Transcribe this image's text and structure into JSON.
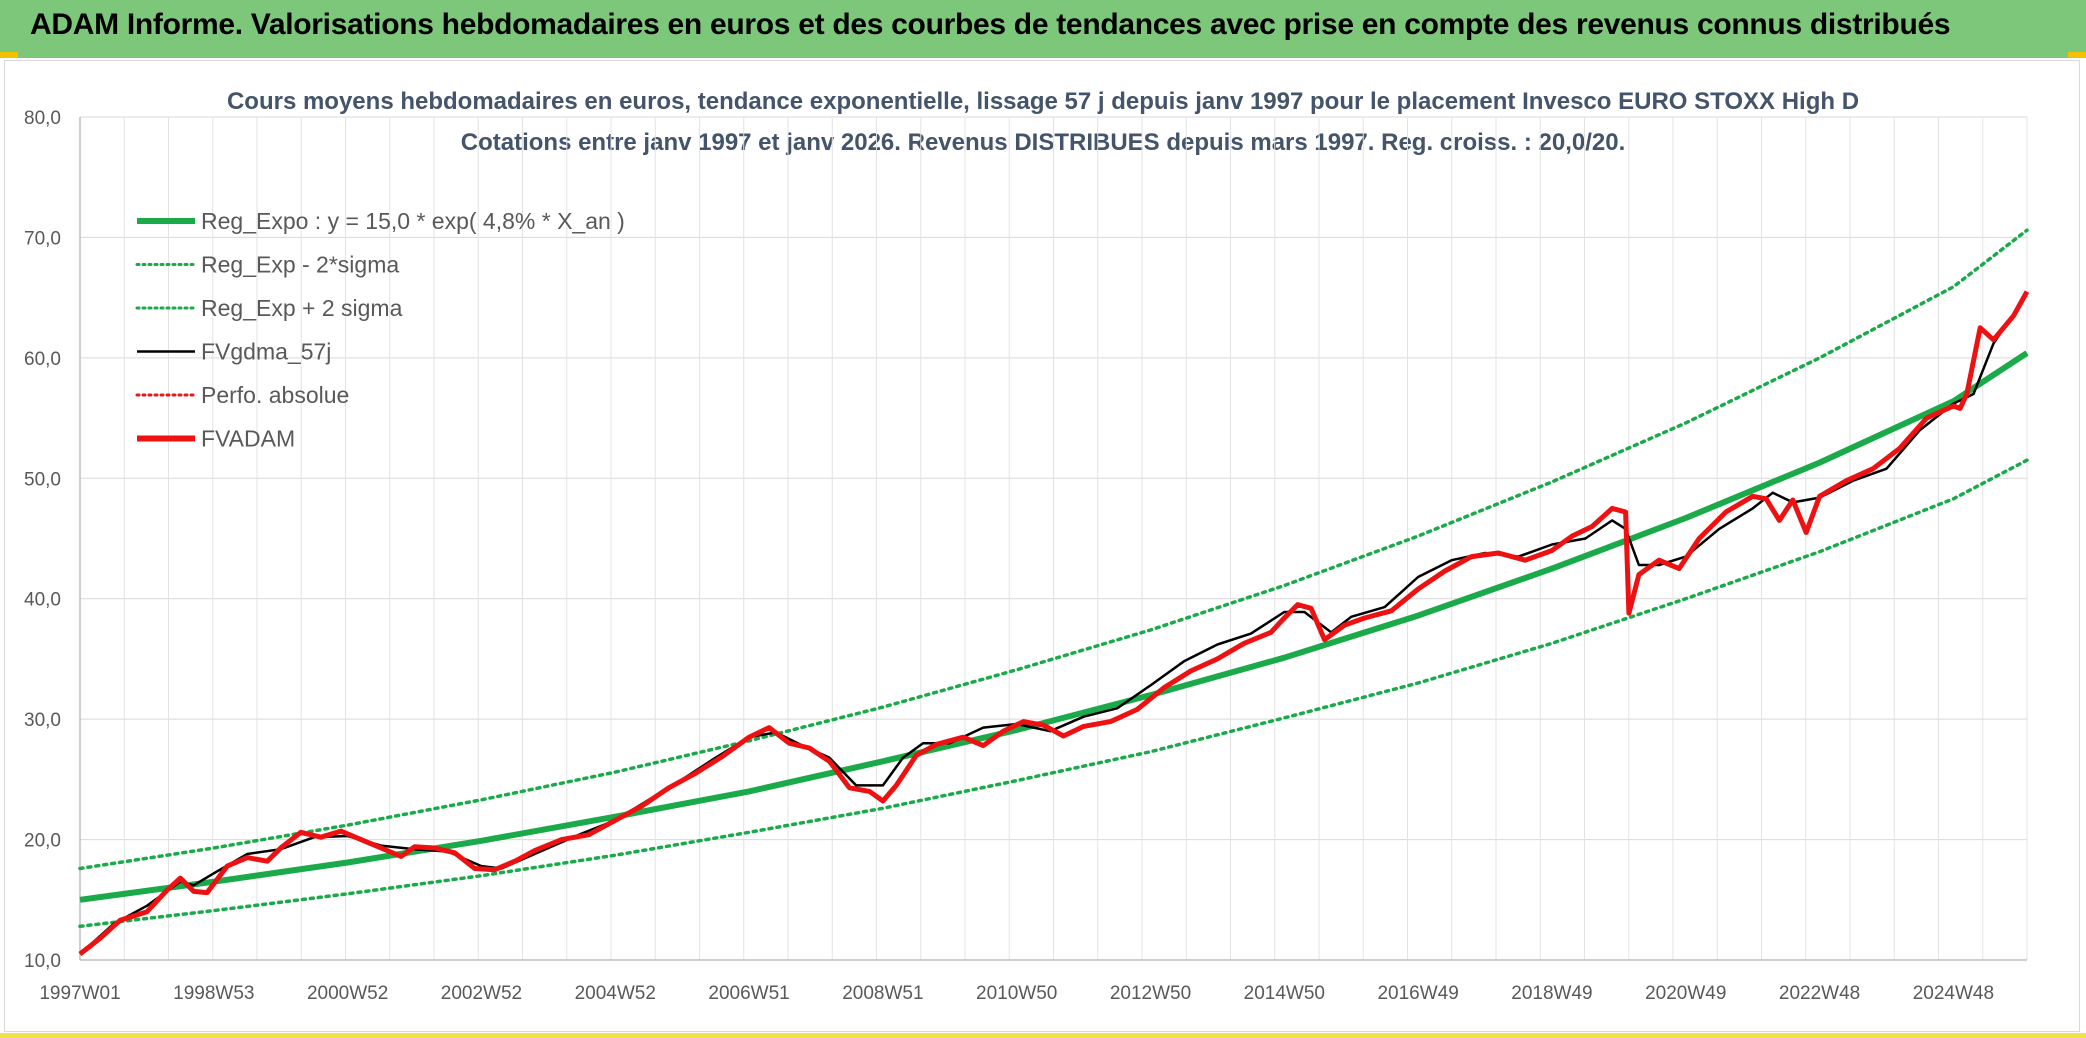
{
  "banner": {
    "title": "ADAM Informe. Valorisations hebdomadaires en euros et des courbes de tendances avec prise en compte des revenus connus distribués",
    "background": "#7dc77b"
  },
  "chart_data": {
    "type": "line",
    "title": "Cours moyens hebdomadaires en euros, tendance exponentielle, lissage 57 j depuis janv 1997 pour le placement Invesco EURO STOXX High D",
    "subtitle": "Cotations entre janv 1997 et janv 2026. Revenus DISTRIBUES depuis mars 1997. Reg. croiss. : 20,0/20.",
    "xlabel": "",
    "ylabel": "",
    "ylim": [
      10,
      80
    ],
    "yticks": [
      "10,0",
      "20,0",
      "30,0",
      "40,0",
      "50,0",
      "60,0",
      "70,0",
      "80,0"
    ],
    "xlim": [
      1997.0,
      2026.1
    ],
    "xticks": [
      {
        "label": "1997W01",
        "x": 1997.0
      },
      {
        "label": "1998W53",
        "x": 1999.0
      },
      {
        "label": "2000W52",
        "x": 2001.0
      },
      {
        "label": "2002W52",
        "x": 2003.0
      },
      {
        "label": "2004W52",
        "x": 2005.0
      },
      {
        "label": "2006W51",
        "x": 2007.0
      },
      {
        "label": "2008W51",
        "x": 2009.0
      },
      {
        "label": "2010W50",
        "x": 2011.0
      },
      {
        "label": "2012W50",
        "x": 2013.0
      },
      {
        "label": "2014W50",
        "x": 2015.0
      },
      {
        "label": "2016W49",
        "x": 2017.0
      },
      {
        "label": "2018W49",
        "x": 2019.0
      },
      {
        "label": "2020W49",
        "x": 2021.0
      },
      {
        "label": "2022W48",
        "x": 2023.0
      },
      {
        "label": "2024W48",
        "x": 2025.0
      }
    ],
    "grid": true,
    "legend_placement": "top-left",
    "series": [
      {
        "name": "Reg_Expo : y = 15,0 * exp( 4,8% *  X_an )",
        "color": "#1aaa4a",
        "style": "solid-thick",
        "x": [
          1997.0,
          1999.0,
          2001.0,
          2003.0,
          2005.0,
          2007.0,
          2009.0,
          2011.0,
          2013.0,
          2015.0,
          2017.0,
          2019.0,
          2021.0,
          2023.0,
          2025.0,
          2026.1
        ],
        "y": [
          15.0,
          16.5,
          18.1,
          19.9,
          21.9,
          24.0,
          26.5,
          29.1,
          32.0,
          35.1,
          38.6,
          42.5,
          46.7,
          51.3,
          56.4,
          60.4
        ]
      },
      {
        "name": "Reg_Exp - 2*sigma",
        "color": "#1aaa4a",
        "style": "dotted",
        "x": [
          1997.0,
          1999.0,
          2001.0,
          2003.0,
          2005.0,
          2007.0,
          2009.0,
          2011.0,
          2013.0,
          2015.0,
          2017.0,
          2019.0,
          2021.0,
          2023.0,
          2025.0,
          2026.1
        ],
        "y": [
          12.8,
          14.1,
          15.5,
          17.0,
          18.7,
          20.6,
          22.6,
          24.9,
          27.3,
          30.1,
          33.0,
          36.3,
          40.0,
          43.9,
          48.3,
          51.5
        ]
      },
      {
        "name": "Reg_Exp + 2 sigma",
        "color": "#1aaa4a",
        "style": "dotted",
        "x": [
          1997.0,
          1999.0,
          2001.0,
          2003.0,
          2005.0,
          2007.0,
          2009.0,
          2011.0,
          2013.0,
          2015.0,
          2017.0,
          2019.0,
          2021.0,
          2023.0,
          2025.0,
          2026.1
        ],
        "y": [
          17.6,
          19.3,
          21.2,
          23.3,
          25.6,
          28.2,
          31.0,
          34.1,
          37.4,
          41.1,
          45.2,
          49.7,
          54.6,
          60.0,
          65.9,
          70.6
        ]
      },
      {
        "name": "FVgdma_57j",
        "color": "#000000",
        "style": "solid",
        "x": [
          1997.0,
          1997.5,
          1998.0,
          1998.5,
          1998.7,
          1999.0,
          1999.5,
          2000.0,
          2000.5,
          2001.0,
          2001.5,
          2002.0,
          2002.5,
          2003.0,
          2003.3,
          2004.0,
          2004.5,
          2005.0,
          2005.5,
          2006.0,
          2006.5,
          2007.0,
          2007.4,
          2007.8,
          2008.2,
          2008.6,
          2009.0,
          2009.3,
          2009.6,
          2010.0,
          2010.5,
          2011.0,
          2011.5,
          2012.0,
          2012.5,
          2013.0,
          2013.5,
          2014.0,
          2014.5,
          2015.0,
          2015.3,
          2015.7,
          2016.0,
          2016.5,
          2017.0,
          2017.5,
          2018.0,
          2018.5,
          2019.0,
          2019.5,
          2019.9,
          2020.1,
          2020.3,
          2020.6,
          2021.0,
          2021.5,
          2022.0,
          2022.3,
          2022.6,
          2023.0,
          2023.5,
          2024.0,
          2024.5,
          2025.0,
          2025.3,
          2025.6,
          2026.0
        ],
        "y": [
          10.5,
          13.0,
          14.5,
          16.5,
          16.2,
          17.2,
          18.8,
          19.2,
          20.2,
          20.3,
          19.5,
          19.2,
          19.0,
          17.8,
          17.6,
          19.3,
          20.5,
          21.6,
          23.3,
          25.0,
          26.8,
          28.5,
          28.9,
          27.8,
          26.8,
          24.5,
          24.5,
          26.8,
          28.0,
          28.0,
          29.3,
          29.6,
          29.0,
          30.2,
          30.9,
          32.8,
          34.8,
          36.2,
          37.1,
          38.9,
          38.9,
          37.2,
          38.5,
          39.3,
          41.8,
          43.2,
          43.8,
          43.5,
          44.5,
          45.0,
          46.5,
          45.8,
          42.8,
          42.8,
          43.5,
          45.8,
          47.5,
          48.8,
          48.0,
          48.4,
          49.8,
          50.8,
          54.0,
          56.2,
          57.0,
          61.2,
          64.5
        ]
      },
      {
        "name": "Perfo. absolue",
        "color": "#e31a1c",
        "style": "dotted",
        "x": [],
        "y": []
      },
      {
        "name": "FVADAM",
        "color": "#ee1111",
        "style": "solid-thick",
        "x": [
          1997.0,
          1997.3,
          1997.6,
          1998.0,
          1998.3,
          1998.5,
          1998.7,
          1998.9,
          1999.2,
          1999.5,
          1999.8,
          2000.0,
          2000.3,
          2000.6,
          2000.9,
          2001.2,
          2001.5,
          2001.8,
          2002.0,
          2002.3,
          2002.6,
          2002.9,
          2003.2,
          2003.5,
          2003.8,
          2004.2,
          2004.6,
          2005.0,
          2005.4,
          2005.8,
          2006.2,
          2006.6,
          2007.0,
          2007.3,
          2007.6,
          2007.9,
          2008.2,
          2008.5,
          2008.8,
          2009.0,
          2009.2,
          2009.5,
          2009.8,
          2010.2,
          2010.5,
          2010.8,
          2011.1,
          2011.4,
          2011.7,
          2012.0,
          2012.4,
          2012.8,
          2013.2,
          2013.6,
          2014.0,
          2014.4,
          2014.8,
          2015.0,
          2015.2,
          2015.4,
          2015.6,
          2015.9,
          2016.2,
          2016.6,
          2017.0,
          2017.4,
          2017.8,
          2018.2,
          2018.6,
          2019.0,
          2019.3,
          2019.6,
          2019.9,
          2020.1,
          2020.15,
          2020.3,
          2020.6,
          2020.9,
          2021.2,
          2021.6,
          2022.0,
          2022.2,
          2022.4,
          2022.6,
          2022.8,
          2023.0,
          2023.4,
          2023.8,
          2024.2,
          2024.6,
          2024.8,
          2025.0,
          2025.1,
          2025.2,
          2025.4,
          2025.6,
          2025.9,
          2026.1
        ],
        "y": [
          10.5,
          11.8,
          13.3,
          14.0,
          15.8,
          16.8,
          15.7,
          15.6,
          17.8,
          18.5,
          18.2,
          19.3,
          20.6,
          20.2,
          20.7,
          20.0,
          19.3,
          18.6,
          19.4,
          19.3,
          18.9,
          17.6,
          17.5,
          18.2,
          19.1,
          20.0,
          20.4,
          21.6,
          22.8,
          24.3,
          25.5,
          26.9,
          28.5,
          29.3,
          28.0,
          27.6,
          26.5,
          24.3,
          24.0,
          23.2,
          24.5,
          27.0,
          27.9,
          28.5,
          27.8,
          29.0,
          29.8,
          29.5,
          28.6,
          29.4,
          29.8,
          30.8,
          32.6,
          34.0,
          35.0,
          36.3,
          37.2,
          38.4,
          39.5,
          39.2,
          36.6,
          37.8,
          38.4,
          39.0,
          40.8,
          42.3,
          43.5,
          43.8,
          43.2,
          44.0,
          45.2,
          46.0,
          47.5,
          47.2,
          38.8,
          42.0,
          43.2,
          42.5,
          45.0,
          47.2,
          48.5,
          48.3,
          46.5,
          48.2,
          45.5,
          48.5,
          49.8,
          50.8,
          52.5,
          55.0,
          55.5,
          56.0,
          55.8,
          57.0,
          62.5,
          61.5,
          63.5,
          65.5
        ]
      }
    ]
  }
}
